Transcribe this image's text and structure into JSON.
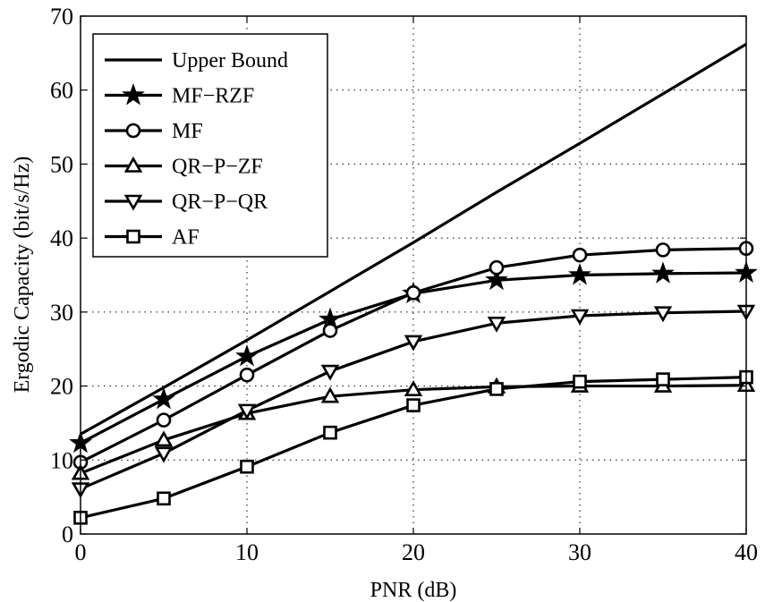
{
  "chart_data": {
    "type": "line",
    "xlabel": "PNR (dB)",
    "ylabel": "Ergodic Capacity (bit/s/Hz)",
    "xlim": [
      0,
      40
    ],
    "ylim": [
      0,
      70
    ],
    "xticks": [
      "0",
      "10",
      "20",
      "30",
      "40"
    ],
    "yticks": [
      "0",
      "10",
      "20",
      "30",
      "40",
      "50",
      "60",
      "70"
    ],
    "grid": true,
    "legend_position": "top-left",
    "x": [
      0,
      5,
      10,
      15,
      20,
      25,
      30,
      35,
      40
    ],
    "series": [
      {
        "name": "Upper Bound",
        "marker": "none",
        "x": [
          0,
          5,
          10,
          15,
          20,
          25,
          30,
          35,
          40
        ],
        "values": [
          13.5,
          19.8,
          26.2,
          32.8,
          39.4,
          46.2,
          52.8,
          59.5,
          66.2
        ]
      },
      {
        "name": "MF−RZF",
        "marker": "star",
        "x": [
          0,
          5,
          10,
          15,
          20,
          25,
          30,
          35,
          40
        ],
        "values": [
          12.3,
          18.2,
          24.0,
          29.0,
          32.5,
          34.3,
          35.0,
          35.2,
          35.3
        ]
      },
      {
        "name": "MF",
        "marker": "circle",
        "x": [
          0,
          5,
          10,
          15,
          20,
          25,
          30,
          35,
          40
        ],
        "values": [
          9.7,
          15.4,
          21.5,
          27.5,
          32.6,
          36.0,
          37.7,
          38.4,
          38.6
        ]
      },
      {
        "name": "QR−P−ZF",
        "marker": "triangle-up",
        "x": [
          0,
          5,
          10,
          15,
          20,
          25,
          30,
          35,
          40
        ],
        "values": [
          8.2,
          12.7,
          16.3,
          18.6,
          19.5,
          19.9,
          20.0,
          20.0,
          20.1
        ]
      },
      {
        "name": "QR−P−QR",
        "marker": "triangle-down",
        "x": [
          0,
          5,
          10,
          15,
          20,
          25,
          30,
          35,
          40
        ],
        "values": [
          6.1,
          10.9,
          16.7,
          22.0,
          26.0,
          28.5,
          29.5,
          29.9,
          30.1
        ]
      },
      {
        "name": "AF",
        "marker": "square",
        "x": [
          0,
          5,
          10,
          15,
          20,
          25,
          30,
          35,
          40
        ],
        "values": [
          2.2,
          4.8,
          9.1,
          13.7,
          17.4,
          19.6,
          20.6,
          20.9,
          21.2
        ]
      }
    ]
  }
}
